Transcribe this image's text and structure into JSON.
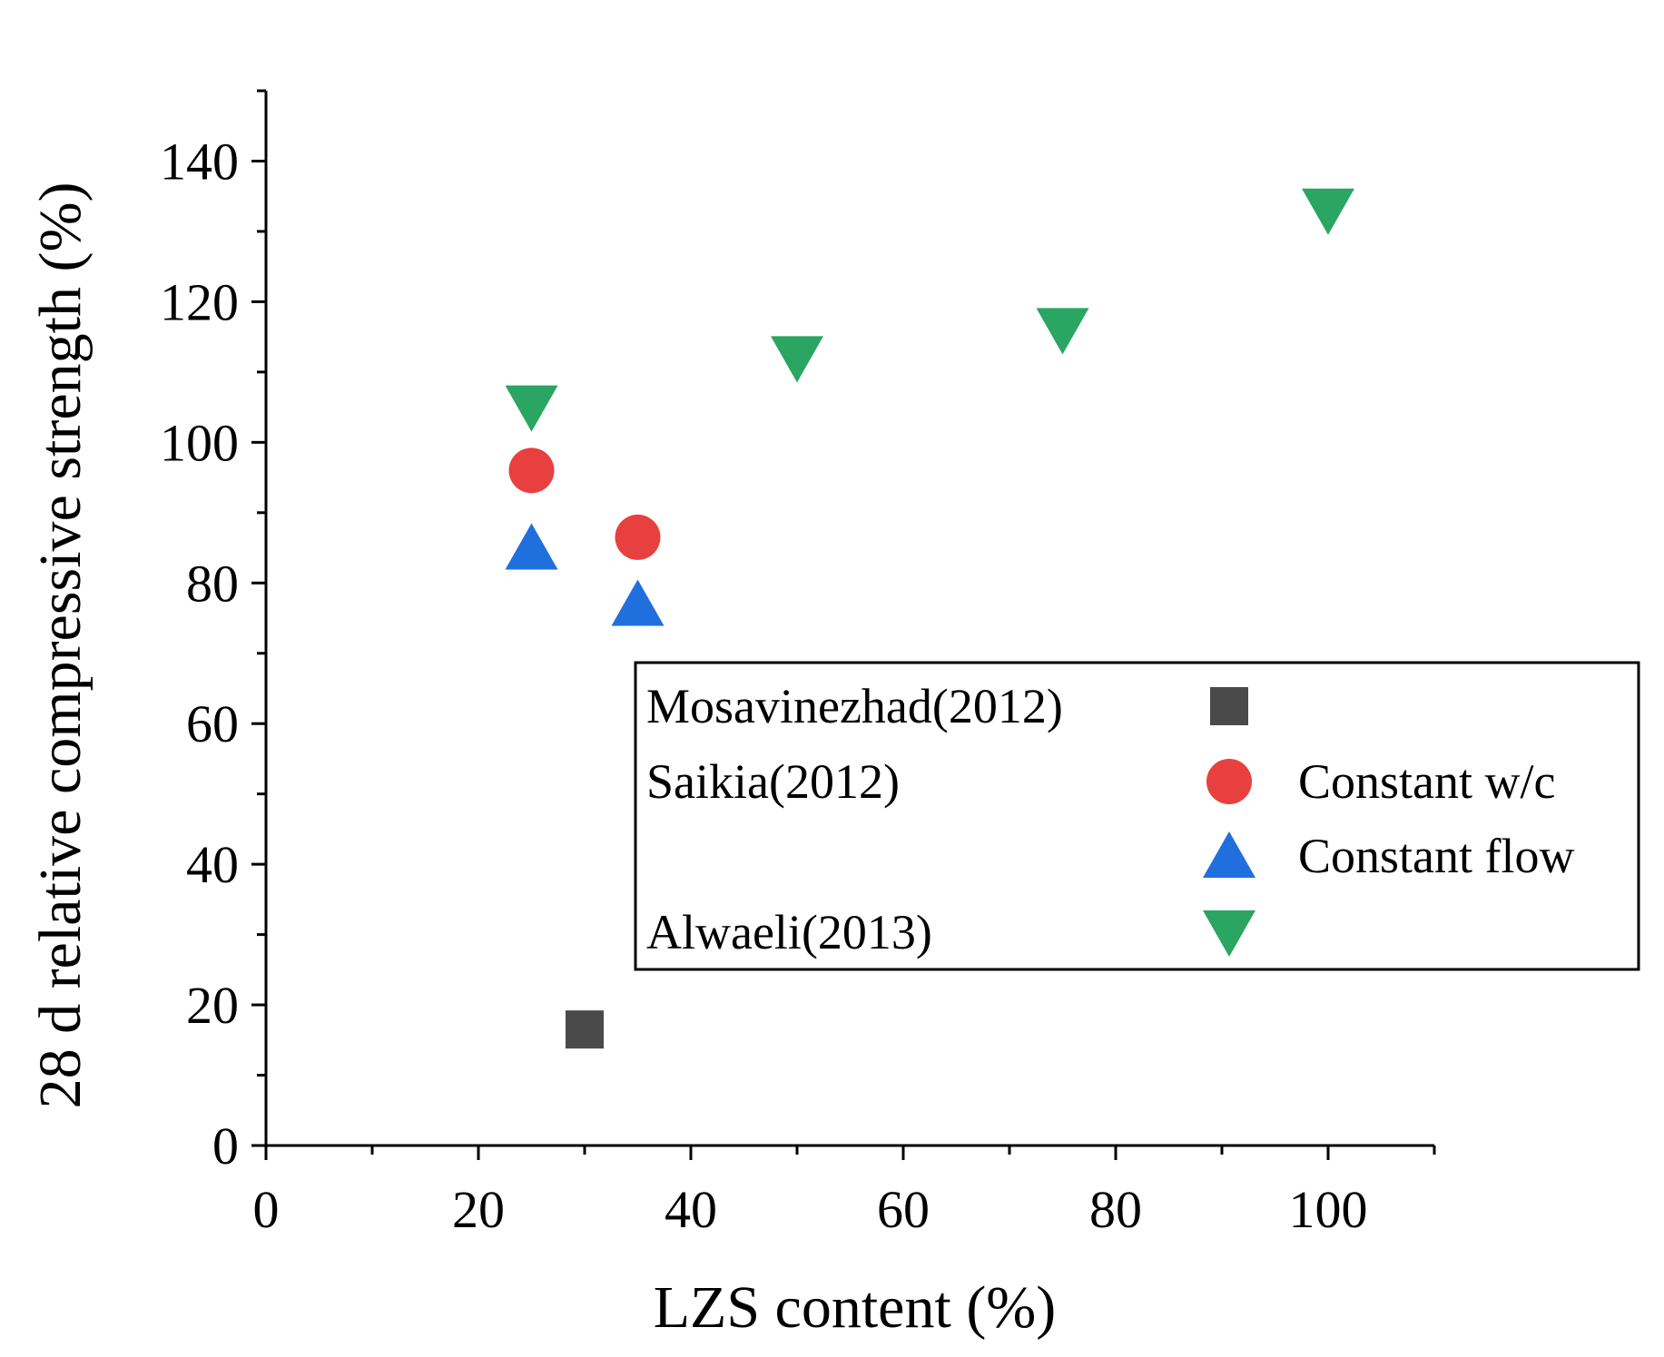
{
  "chart_data": {
    "type": "scatter",
    "title": "",
    "xlabel": "LZS content (%)",
    "ylabel": "28 d relative compressive strength (%)",
    "xlim": [
      0,
      110
    ],
    "ylim": [
      0,
      150
    ],
    "xticks": [
      0,
      20,
      40,
      60,
      80,
      100
    ],
    "yticks": [
      0,
      20,
      40,
      60,
      80,
      100,
      120,
      140
    ],
    "xtick_labels": [
      "0",
      "20",
      "40",
      "60",
      "80",
      "100"
    ],
    "ytick_labels": [
      "0",
      "20",
      "40",
      "60",
      "80",
      "100",
      "120",
      "140"
    ],
    "grid": false,
    "legend_position": "center-right",
    "series": [
      {
        "name": "Mosavinezhad(2012)",
        "group": "Mosavinezhad(2012)",
        "label": "",
        "marker": "square",
        "color": "#4a4a4a",
        "points": [
          {
            "x": 30,
            "y": 16.5
          }
        ]
      },
      {
        "name": "Saikia(2012) Constant w/c",
        "group": "Saikia(2012)",
        "label": "Constant w/c",
        "marker": "circle",
        "color": "#e8403f",
        "points": [
          {
            "x": 25,
            "y": 96
          },
          {
            "x": 35,
            "y": 86.5
          }
        ]
      },
      {
        "name": "Saikia(2012) Constant flow",
        "group": "",
        "label": "Constant flow",
        "marker": "triangle-up",
        "color": "#1f6fde",
        "points": [
          {
            "x": 25,
            "y": 85
          },
          {
            "x": 35,
            "y": 77
          }
        ]
      },
      {
        "name": "Alwaeli(2013)",
        "group": "Alwaeli(2013)",
        "label": "",
        "marker": "triangle-down",
        "color": "#2aa562",
        "points": [
          {
            "x": 25,
            "y": 105
          },
          {
            "x": 50,
            "y": 112
          },
          {
            "x": 75,
            "y": 116
          },
          {
            "x": 100,
            "y": 133
          }
        ]
      }
    ]
  }
}
